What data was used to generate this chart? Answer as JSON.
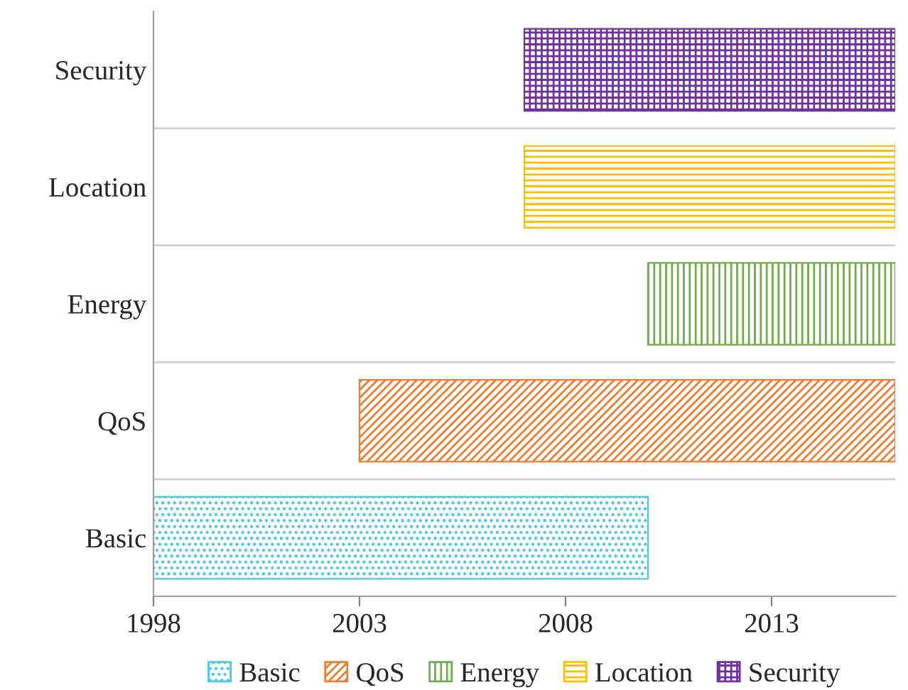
{
  "chart_data": {
    "type": "bar",
    "orientation": "horizontal",
    "categories": [
      "Security",
      "Location",
      "Energy",
      "QoS",
      "Basic"
    ],
    "series": [
      {
        "name": "Basic",
        "color": "#4bc8e8",
        "base": [
          null,
          null,
          null,
          null,
          1998
        ],
        "values": [
          null,
          null,
          null,
          null,
          12
        ]
      },
      {
        "name": "QoS",
        "color": "#ed7d31",
        "base": [
          null,
          null,
          null,
          2003,
          null
        ],
        "values": [
          null,
          null,
          null,
          13,
          null
        ]
      },
      {
        "name": "Energy",
        "color": "#70ad47",
        "base": [
          null,
          null,
          2010,
          null,
          null
        ],
        "values": [
          null,
          null,
          6,
          null,
          null
        ]
      },
      {
        "name": "Location",
        "color": "#ffc000",
        "base": [
          null,
          2007,
          null,
          null,
          null
        ],
        "values": [
          null,
          9,
          null,
          null,
          null
        ]
      },
      {
        "name": "Security",
        "color": "#7030a0",
        "base": [
          2007,
          null,
          null,
          null,
          null
        ],
        "values": [
          9,
          null,
          null,
          null,
          null
        ]
      }
    ],
    "xlim": [
      1998,
      2016
    ],
    "xticks": [
      1998,
      2003,
      2008,
      2013
    ],
    "grid": "y",
    "legend": "bottom"
  }
}
